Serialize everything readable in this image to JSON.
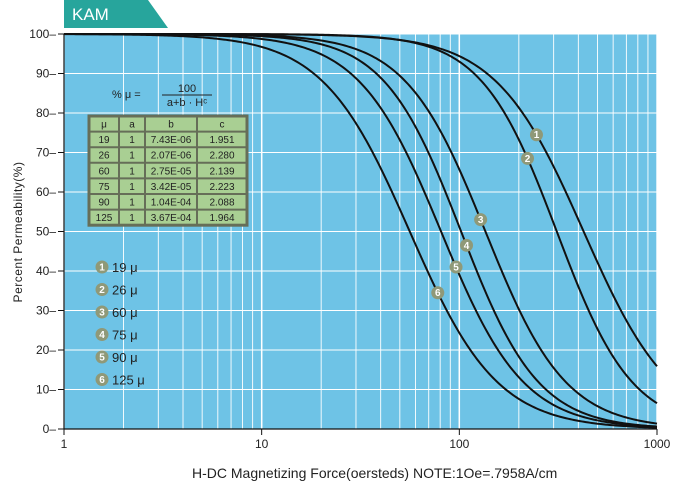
{
  "header": {
    "tag": "KAM"
  },
  "formula": {
    "lhs": "% μ =",
    "numerator": "100",
    "denominator": "a+b · Hᶜ"
  },
  "table": {
    "headers": [
      "μ",
      "a",
      "b",
      "c"
    ],
    "rows": [
      [
        "19",
        "1",
        "7.43E-06",
        "1.951"
      ],
      [
        "26",
        "1",
        "2.07E-06",
        "2.280"
      ],
      [
        "60",
        "1",
        "2.75E-05",
        "2.139"
      ],
      [
        "75",
        "1",
        "3.42E-05",
        "2.223"
      ],
      [
        "90",
        "1",
        "1.04E-04",
        "2.088"
      ],
      [
        "125",
        "1",
        "3.67E-04",
        "1.964"
      ]
    ]
  },
  "legend": [
    {
      "num": "1",
      "label": "19 μ"
    },
    {
      "num": "2",
      "label": "26 μ"
    },
    {
      "num": "3",
      "label": "60 μ"
    },
    {
      "num": "4",
      "label": "75 μ"
    },
    {
      "num": "5",
      "label": "90 μ"
    },
    {
      "num": "6",
      "label": "125 μ"
    }
  ],
  "colors": {
    "plot_bg": "#6ec3e6",
    "header_bg": "#27a59c",
    "curve": "#111111",
    "marker": "#8f9978",
    "grid": "#ffffff"
  },
  "chart_data": {
    "type": "line",
    "xscale": "log",
    "xlim": [
      1,
      1000
    ],
    "ylim": [
      0,
      100
    ],
    "xticks": [
      "1",
      "10",
      "100",
      "1000"
    ],
    "yticks": [
      "0",
      "10",
      "20",
      "30",
      "40",
      "50",
      "60",
      "70",
      "80",
      "90",
      "100"
    ],
    "xlabel": "H-DC Magnetizing Force(oersteds)   NOTE:1Oe=.7958A/cm",
    "ylabel": "Percent Permeability(%)",
    "grid": true,
    "series": [
      {
        "name": "19 μ",
        "marker": "1",
        "a": 1,
        "b": 7.43e-06,
        "c": 1.951
      },
      {
        "name": "26 μ",
        "marker": "2",
        "a": 1,
        "b": 2.07e-06,
        "c": 2.28
      },
      {
        "name": "60 μ",
        "marker": "3",
        "a": 1,
        "b": 2.75e-05,
        "c": 2.139
      },
      {
        "name": "75 μ",
        "marker": "4",
        "a": 1,
        "b": 3.42e-05,
        "c": 2.223
      },
      {
        "name": "90 μ",
        "marker": "5",
        "a": 1,
        "b": 0.000104,
        "c": 2.088
      },
      {
        "name": "125 μ",
        "marker": "6",
        "a": 1,
        "b": 0.000367,
        "c": 1.964
      }
    ]
  }
}
